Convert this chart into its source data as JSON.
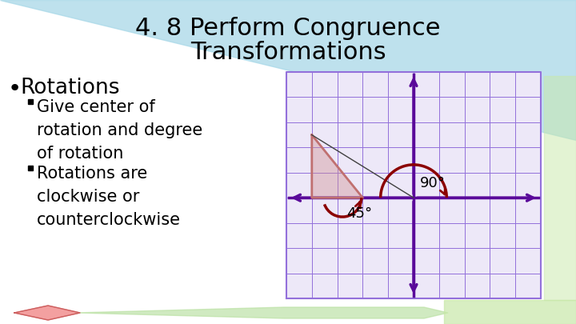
{
  "title_line1": "4. 8 Perform Congruence",
  "title_line2": "Transformations",
  "title_fontsize": 22,
  "title_color": "#000000",
  "bg_color": "#ffffff",
  "cyan_tri_color": "#a8d8e8",
  "bullet1": "Rotations",
  "bullet1_fontsize": 19,
  "sub_fontsize": 15,
  "grid_color": "#9370DB",
  "grid_bg": "#ede8f8",
  "axis_color": "#5a0a9a",
  "triangle_color": "#c07070",
  "triangle_fill": "#d09090",
  "arc_color": "#8B0000",
  "label_90": "90°",
  "label_45": "45°",
  "label_fontsize": 13,
  "diamond_color": "#f08080",
  "green_color": "#b8e0a0",
  "green2_color": "#c8e8a8"
}
